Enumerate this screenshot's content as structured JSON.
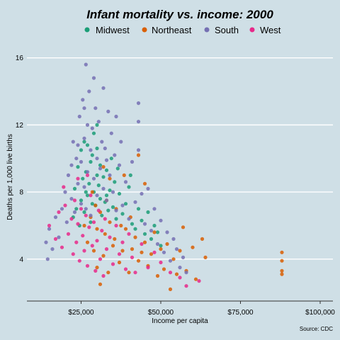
{
  "colors": {
    "background": "#cfdfe6",
    "gridline": "#ffffff",
    "axis": "#333333",
    "Midwest": "#1b9e77",
    "Northeast": "#d95f02",
    "South": "#7570b3",
    "West": "#e7298a"
  },
  "chart_data": {
    "type": "scatter",
    "title": "Infant mortality vs. income: 2000",
    "xlabel": "Income per capita",
    "ylabel": "Deaths per 1,000 live births",
    "caption": "Source: CDC",
    "xlim": [
      8000,
      104000
    ],
    "ylim": [
      1.5,
      17
    ],
    "xticks": [
      25000,
      50000,
      75000,
      100000
    ],
    "xtick_labels": [
      "$25,000",
      "$50,000",
      "$75,000",
      "$100,000"
    ],
    "yticks": [
      4,
      8,
      12,
      16
    ],
    "ytick_labels": [
      "4",
      "8",
      "12",
      "16"
    ],
    "grid": "horizontal",
    "legend_position": "top",
    "series": [
      {
        "name": "Midwest",
        "points": [
          [
            22500,
            6.5
          ],
          [
            23000,
            8.2
          ],
          [
            23500,
            7.0
          ],
          [
            24000,
            9.5
          ],
          [
            24500,
            6.0
          ],
          [
            25000,
            10.5
          ],
          [
            25000,
            7.5
          ],
          [
            25500,
            8.8
          ],
          [
            26000,
            11.0
          ],
          [
            26000,
            6.8
          ],
          [
            26500,
            9.2
          ],
          [
            27000,
            10.8
          ],
          [
            27000,
            7.8
          ],
          [
            27500,
            8.5
          ],
          [
            28000,
            9.8
          ],
          [
            28000,
            6.2
          ],
          [
            28500,
            10.2
          ],
          [
            29000,
            8.0
          ],
          [
            29000,
            11.5
          ],
          [
            29500,
            7.2
          ],
          [
            30000,
            9.0
          ],
          [
            30000,
            10.6
          ],
          [
            30500,
            8.4
          ],
          [
            31000,
            7.6
          ],
          [
            31000,
            9.6
          ],
          [
            31500,
            6.6
          ],
          [
            32000,
            8.9
          ],
          [
            32500,
            7.4
          ],
          [
            33000,
            9.3
          ],
          [
            33500,
            6.9
          ],
          [
            34000,
            8.1
          ],
          [
            34500,
            10.0
          ],
          [
            35000,
            7.1
          ],
          [
            35500,
            8.6
          ],
          [
            36000,
            6.4
          ],
          [
            37000,
            7.9
          ],
          [
            38000,
            6.7
          ],
          [
            39000,
            7.3
          ],
          [
            40000,
            8.3
          ],
          [
            41000,
            6.1
          ],
          [
            42000,
            5.8
          ],
          [
            43000,
            7.0
          ],
          [
            44000,
            6.3
          ],
          [
            45000,
            5.5
          ],
          [
            46000,
            6.8
          ],
          [
            47000,
            5.2
          ],
          [
            48000,
            6.0
          ],
          [
            49000,
            5.6
          ],
          [
            50000,
            4.8
          ],
          [
            40500,
            9.0
          ],
          [
            30000,
            12.0
          ],
          [
            36500,
            9.4
          ],
          [
            28500,
            7.3
          ],
          [
            26500,
            8.0
          ],
          [
            33000,
            7.8
          ]
        ]
      },
      {
        "name": "Northeast",
        "points": [
          [
            26000,
            6.0
          ],
          [
            27000,
            5.0
          ],
          [
            28000,
            6.5
          ],
          [
            29000,
            4.5
          ],
          [
            29500,
            7.2
          ],
          [
            30000,
            3.5
          ],
          [
            30000,
            5.8
          ],
          [
            31000,
            2.5
          ],
          [
            31000,
            6.8
          ],
          [
            32000,
            4.2
          ],
          [
            32500,
            5.5
          ],
          [
            33000,
            7.5
          ],
          [
            33500,
            3.2
          ],
          [
            34000,
            6.2
          ],
          [
            35000,
            4.8
          ],
          [
            35500,
            5.2
          ],
          [
            36000,
            7.0
          ],
          [
            37000,
            3.8
          ],
          [
            37500,
            6.0
          ],
          [
            38000,
            4.5
          ],
          [
            39000,
            5.8
          ],
          [
            40000,
            3.2
          ],
          [
            40500,
            6.5
          ],
          [
            41000,
            4.6
          ],
          [
            42000,
            5.3
          ],
          [
            43000,
            3.9
          ],
          [
            44000,
            4.4
          ],
          [
            45000,
            5.0
          ],
          [
            46000,
            3.6
          ],
          [
            47000,
            4.3
          ],
          [
            48000,
            5.6
          ],
          [
            49000,
            3.0
          ],
          [
            50000,
            4.6
          ],
          [
            51000,
            3.4
          ],
          [
            52000,
            4.9
          ],
          [
            53000,
            2.2
          ],
          [
            54000,
            4.0
          ],
          [
            55000,
            3.1
          ],
          [
            56000,
            4.5
          ],
          [
            57000,
            5.9
          ],
          [
            58000,
            3.3
          ],
          [
            60000,
            4.7
          ],
          [
            61000,
            2.8
          ],
          [
            63000,
            5.2
          ],
          [
            64000,
            4.1
          ],
          [
            88000,
            4.4
          ],
          [
            88000,
            3.9
          ],
          [
            88000,
            3.3
          ],
          [
            88000,
            3.1
          ],
          [
            32000,
            9.5
          ],
          [
            34000,
            8.8
          ],
          [
            45000,
            8.5
          ],
          [
            43000,
            10.2
          ],
          [
            38500,
            9.0
          ],
          [
            28500,
            8.0
          ]
        ]
      },
      {
        "name": "South",
        "points": [
          [
            14000,
            5.0
          ],
          [
            14500,
            4.0
          ],
          [
            15000,
            5.8
          ],
          [
            16000,
            4.6
          ],
          [
            17000,
            6.5
          ],
          [
            18000,
            5.3
          ],
          [
            19000,
            7.0
          ],
          [
            20000,
            8.0
          ],
          [
            20500,
            6.2
          ],
          [
            21000,
            9.0
          ],
          [
            22000,
            7.6
          ],
          [
            22500,
            11.0
          ],
          [
            23000,
            6.8
          ],
          [
            23500,
            10.0
          ],
          [
            24000,
            8.5
          ],
          [
            24500,
            12.5
          ],
          [
            25000,
            7.3
          ],
          [
            25000,
            9.8
          ],
          [
            25500,
            13.5
          ],
          [
            26000,
            8.3
          ],
          [
            26000,
            11.2
          ],
          [
            26500,
            15.6
          ],
          [
            26500,
            7.0
          ],
          [
            27000,
            12.0
          ],
          [
            27000,
            9.2
          ],
          [
            27500,
            14.0
          ],
          [
            28000,
            10.5
          ],
          [
            28000,
            6.6
          ],
          [
            28500,
            11.8
          ],
          [
            29000,
            8.8
          ],
          [
            29500,
            13.0
          ],
          [
            30000,
            10.0
          ],
          [
            30000,
            7.8
          ],
          [
            30500,
            12.2
          ],
          [
            31000,
            9.4
          ],
          [
            31500,
            11.0
          ],
          [
            32000,
            14.2
          ],
          [
            32000,
            8.2
          ],
          [
            32500,
            10.6
          ],
          [
            33000,
            7.5
          ],
          [
            33500,
            12.8
          ],
          [
            34000,
            9.0
          ],
          [
            34500,
            11.5
          ],
          [
            35000,
            8.0
          ],
          [
            35500,
            10.2
          ],
          [
            36000,
            6.9
          ],
          [
            37000,
            9.6
          ],
          [
            37500,
            11.0
          ],
          [
            38000,
            7.2
          ],
          [
            39000,
            8.6
          ],
          [
            40000,
            6.4
          ],
          [
            41000,
            9.8
          ],
          [
            42000,
            7.4
          ],
          [
            43000,
            13.3
          ],
          [
            43000,
            10.5
          ],
          [
            44000,
            7.9
          ],
          [
            45000,
            6.1
          ],
          [
            46000,
            8.2
          ],
          [
            47000,
            5.7
          ],
          [
            48000,
            7.0
          ],
          [
            49000,
            4.9
          ],
          [
            50000,
            6.3
          ],
          [
            51000,
            4.4
          ],
          [
            52000,
            5.6
          ],
          [
            53000,
            3.9
          ],
          [
            54000,
            5.2
          ],
          [
            55000,
            4.6
          ],
          [
            56000,
            3.5
          ],
          [
            57000,
            4.1
          ],
          [
            58000,
            3.2
          ],
          [
            43000,
            12.2
          ],
          [
            29000,
            14.8
          ],
          [
            26000,
            13.0
          ],
          [
            24000,
            10.8
          ],
          [
            33000,
            9.9
          ],
          [
            36000,
            12.5
          ],
          [
            22000,
            9.6
          ]
        ]
      },
      {
        "name": "West",
        "points": [
          [
            15000,
            6.0
          ],
          [
            17000,
            5.2
          ],
          [
            18000,
            6.8
          ],
          [
            19000,
            4.7
          ],
          [
            20000,
            7.2
          ],
          [
            21000,
            5.5
          ],
          [
            22000,
            6.4
          ],
          [
            22500,
            4.3
          ],
          [
            23000,
            7.5
          ],
          [
            23500,
            5.0
          ],
          [
            24000,
            6.1
          ],
          [
            24500,
            3.9
          ],
          [
            25000,
            7.0
          ],
          [
            25500,
            5.4
          ],
          [
            26000,
            4.5
          ],
          [
            26500,
            6.6
          ],
          [
            27000,
            3.6
          ],
          [
            27500,
            5.9
          ],
          [
            28000,
            7.8
          ],
          [
            28500,
            4.8
          ],
          [
            29000,
            6.2
          ],
          [
            29500,
            3.3
          ],
          [
            30000,
            5.1
          ],
          [
            30500,
            6.9
          ],
          [
            31000,
            4.0
          ],
          [
            31500,
            5.7
          ],
          [
            32000,
            3.0
          ],
          [
            32500,
            6.4
          ],
          [
            33000,
            4.6
          ],
          [
            34000,
            5.3
          ],
          [
            35000,
            3.7
          ],
          [
            36000,
            6.0
          ],
          [
            37000,
            4.3
          ],
          [
            38000,
            5.0
          ],
          [
            39000,
            3.4
          ],
          [
            40000,
            5.5
          ],
          [
            41000,
            4.1
          ],
          [
            42000,
            3.2
          ],
          [
            44000,
            4.9
          ],
          [
            46000,
            3.5
          ],
          [
            48000,
            4.4
          ],
          [
            50000,
            3.8
          ],
          [
            53000,
            3.2
          ],
          [
            56000,
            2.9
          ],
          [
            58000,
            2.4
          ],
          [
            62000,
            2.7
          ],
          [
            19500,
            8.3
          ],
          [
            24000,
            8.8
          ],
          [
            27000,
            9.0
          ]
        ]
      }
    ]
  }
}
